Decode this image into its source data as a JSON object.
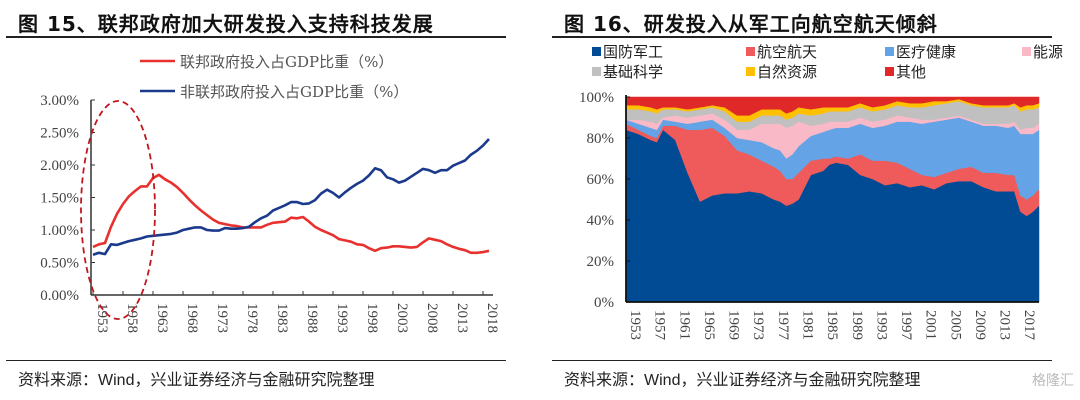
{
  "left": {
    "title": "图 15、联邦政府加大研发投入支持科技发展",
    "source_prefix": "资料来源：",
    "source_en": "Wind",
    "source_suffix": "，兴业证券经济与金融研究院整理"
  },
  "right": {
    "title": "图 16、研发投入从军工向航空航天倾斜",
    "source_prefix": "资料来源：",
    "source_en": "Wind",
    "source_suffix": "，兴业证券经济与金融研究院整理",
    "watermark": "格隆汇"
  },
  "chart_data": [
    {
      "type": "line",
      "title": "图 15、联邦政府加大研发投入支持科技发展",
      "xlabel": "",
      "ylabel": "",
      "x_start": 1953,
      "x_end": 2019,
      "xticks": [
        "1953",
        "1958",
        "1963",
        "1968",
        "1973",
        "1978",
        "1983",
        "1988",
        "1993",
        "1998",
        "2003",
        "2008",
        "2013",
        "2018"
      ],
      "yticks": [
        "0.00%",
        "0.50%",
        "1.00%",
        "1.50%",
        "2.00%",
        "2.50%",
        "3.00%"
      ],
      "ylim": [
        0,
        3.0
      ],
      "grid": false,
      "legend_position": "top",
      "annotation": "dashed ellipse highlighting 1953-1965",
      "series": [
        {
          "name": "联邦政府投入占GDP比重（%）",
          "color": "#e8312f",
          "values": [
            0.74,
            0.78,
            0.8,
            1.05,
            1.25,
            1.4,
            1.52,
            1.6,
            1.67,
            1.67,
            1.8,
            1.85,
            1.78,
            1.73,
            1.66,
            1.57,
            1.47,
            1.38,
            1.3,
            1.23,
            1.16,
            1.11,
            1.09,
            1.07,
            1.06,
            1.04,
            1.04,
            1.04,
            1.04,
            1.08,
            1.11,
            1.12,
            1.13,
            1.19,
            1.18,
            1.2,
            1.13,
            1.05,
            1.0,
            0.96,
            0.92,
            0.86,
            0.84,
            0.82,
            0.78,
            0.77,
            0.72,
            0.68,
            0.72,
            0.73,
            0.75,
            0.75,
            0.74,
            0.73,
            0.74,
            0.81,
            0.87,
            0.85,
            0.83,
            0.78,
            0.74,
            0.71,
            0.69,
            0.65,
            0.65,
            0.66,
            0.68
          ]
        },
        {
          "name": "非联邦政府投入占GDP比重（%）",
          "color": "#1b3a8c",
          "values": [
            0.62,
            0.65,
            0.63,
            0.78,
            0.77,
            0.8,
            0.83,
            0.85,
            0.87,
            0.9,
            0.91,
            0.92,
            0.93,
            0.94,
            0.96,
            1.0,
            1.02,
            1.04,
            1.04,
            1.0,
            0.99,
            0.99,
            1.03,
            1.02,
            1.02,
            1.03,
            1.05,
            1.12,
            1.18,
            1.22,
            1.3,
            1.34,
            1.38,
            1.43,
            1.43,
            1.4,
            1.41,
            1.46,
            1.56,
            1.62,
            1.57,
            1.5,
            1.58,
            1.65,
            1.71,
            1.76,
            1.84,
            1.95,
            1.92,
            1.81,
            1.78,
            1.73,
            1.76,
            1.82,
            1.88,
            1.94,
            1.92,
            1.88,
            1.92,
            1.92,
            1.99,
            2.03,
            2.07,
            2.16,
            2.22,
            2.3,
            2.4
          ]
        }
      ]
    },
    {
      "type": "area",
      "stacked": true,
      "title": "图 16、研发投入从军工向航空航天倾斜",
      "xlabel": "",
      "ylabel": "",
      "x_years": [
        1953,
        1955,
        1957,
        1958,
        1959,
        1961,
        1963,
        1965,
        1967,
        1969,
        1971,
        1973,
        1975,
        1977,
        1978,
        1979,
        1980,
        1981,
        1983,
        1985,
        1986,
        1987,
        1989,
        1991,
        1993,
        1995,
        1997,
        1999,
        2001,
        2003,
        2005,
        2007,
        2009,
        2011,
        2013,
        2015,
        2016,
        2017,
        2018,
        2019,
        2020
      ],
      "xticks": [
        "1953",
        "1957",
        "1961",
        "1965",
        "1969",
        "1973",
        "1977",
        "1981",
        "1985",
        "1989",
        "1993",
        "1997",
        "2001",
        "2005",
        "2009",
        "2013",
        "2017"
      ],
      "yticks": [
        "0%",
        "20%",
        "40%",
        "60%",
        "80%",
        "100%"
      ],
      "ylim": [
        0,
        100
      ],
      "grid": false,
      "legend_position": "top",
      "series": [
        {
          "name": "国防军工",
          "color": "#004b93",
          "values": [
            84,
            82,
            79,
            78,
            84,
            79,
            63,
            49,
            52,
            53,
            53,
            54,
            53,
            50,
            49,
            47,
            48,
            50,
            62,
            64,
            67,
            68,
            67,
            62,
            60,
            57,
            58,
            56,
            57,
            55,
            58,
            59,
            59,
            56,
            54,
            54,
            54,
            44,
            42,
            44,
            47
          ]
        },
        {
          "name": "航空航天",
          "color": "#ef5a5a",
          "values": [
            3,
            2,
            2,
            2,
            2,
            7,
            21,
            35,
            33,
            28,
            21,
            18,
            16,
            16,
            15,
            13,
            12,
            13,
            7,
            6,
            3,
            3,
            3,
            10,
            9,
            12,
            10,
            9,
            5,
            6,
            5,
            6,
            7,
            7,
            9,
            8,
            8,
            8,
            8,
            8,
            8
          ]
        },
        {
          "name": "医疗健康",
          "color": "#64a3e6",
          "values": [
            2,
            3,
            4,
            4,
            3,
            2,
            3,
            4,
            4,
            4,
            6,
            7,
            9,
            9,
            10,
            10,
            12,
            13,
            12,
            13,
            14,
            14,
            15,
            15,
            16,
            17,
            20,
            23,
            25,
            27,
            26,
            25,
            22,
            23,
            23,
            23,
            24,
            30,
            32,
            30,
            29
          ]
        },
        {
          "name": "能源",
          "color": "#f9b9c7",
          "values": [
            0,
            2,
            3,
            3,
            1,
            3,
            3,
            3,
            3,
            4,
            4,
            5,
            9,
            12,
            13,
            15,
            14,
            12,
            5,
            4,
            4,
            3,
            3,
            3,
            3,
            3,
            3,
            2,
            2,
            1,
            1,
            1,
            1,
            1,
            1,
            2,
            2,
            2,
            3,
            3,
            3
          ]
        },
        {
          "name": "基础科学",
          "color": "#c0c0c0",
          "values": [
            5,
            5,
            5,
            5,
            4,
            3,
            3,
            3,
            3,
            4,
            4,
            4,
            4,
            4,
            4,
            4,
            4,
            4,
            5,
            5,
            5,
            5,
            5,
            5,
            5,
            5,
            5,
            5,
            6,
            7,
            7,
            7,
            7,
            8,
            8,
            8,
            8,
            9,
            9,
            9,
            8
          ]
        },
        {
          "name": "自然资源",
          "color": "#ffc000",
          "values": [
            2,
            2,
            2,
            2,
            1,
            1,
            1,
            1,
            1,
            2,
            3,
            3,
            3,
            3,
            3,
            3,
            3,
            3,
            3,
            3,
            2,
            2,
            2,
            2,
            2,
            2,
            2,
            2,
            2,
            2,
            1,
            1,
            1,
            1,
            1,
            1,
            1,
            2,
            2,
            2,
            2
          ]
        },
        {
          "name": "其他",
          "color": "#e02828",
          "values": [
            4,
            4,
            5,
            6,
            5,
            5,
            6,
            5,
            4,
            5,
            9,
            9,
            6,
            6,
            6,
            8,
            7,
            5,
            6,
            5,
            5,
            5,
            5,
            3,
            5,
            4,
            2,
            3,
            3,
            2,
            2,
            1,
            3,
            4,
            4,
            4,
            3,
            5,
            4,
            4,
            3
          ]
        }
      ]
    }
  ]
}
